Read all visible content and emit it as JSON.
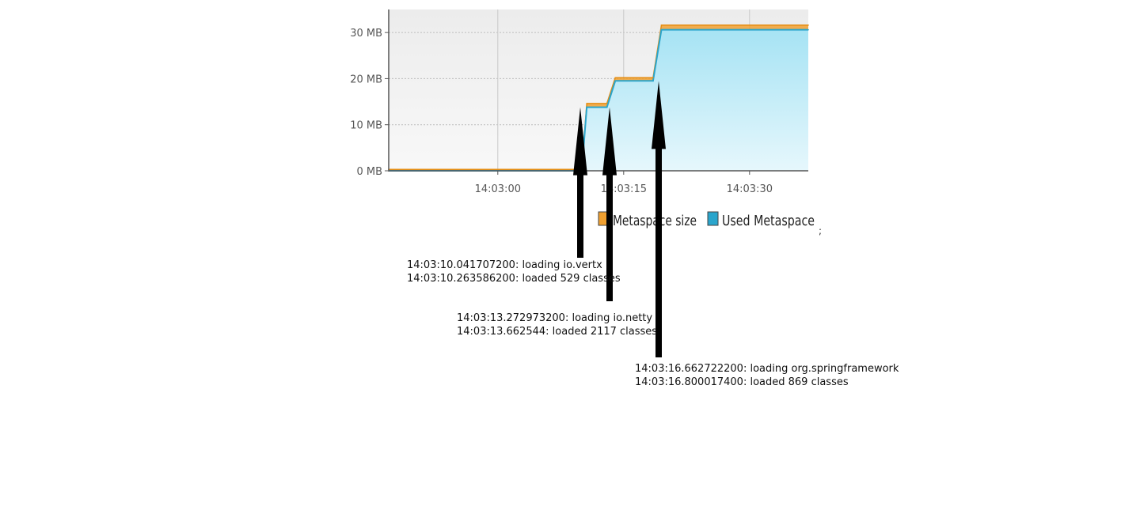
{
  "chart_data": {
    "type": "area",
    "xlabel": "",
    "ylabel": "",
    "x_ticks": [
      "14:03:00",
      "14:03:15",
      "14:03:30"
    ],
    "y_ticks": [
      "0 MB",
      "10 MB",
      "20 MB",
      "30 MB"
    ],
    "ylim": [
      0,
      35
    ],
    "xlim_seconds": [
      -13,
      37
    ],
    "grid": true,
    "legend_position": "bottom",
    "series": [
      {
        "name": "Metaspace size",
        "color": "#f0a030",
        "points": [
          [
            -13,
            0.3
          ],
          [
            10.0,
            0.3
          ],
          [
            10.6,
            14.6
          ],
          [
            13.0,
            14.6
          ],
          [
            14.0,
            20.2
          ],
          [
            18.5,
            20.2
          ],
          [
            19.5,
            31.6
          ],
          [
            37,
            31.6
          ]
        ]
      },
      {
        "name": "Used Metaspace",
        "color": "#2aa5cc",
        "points": [
          [
            -13,
            0.0
          ],
          [
            10.0,
            0.0
          ],
          [
            10.6,
            13.8
          ],
          [
            13.0,
            13.8
          ],
          [
            14.0,
            19.5
          ],
          [
            18.5,
            19.5
          ],
          [
            19.5,
            30.6
          ],
          [
            37,
            30.6
          ]
        ]
      }
    ],
    "annotations": [
      {
        "target_seconds": 10.6,
        "lines": [
          "14:03:10.041707200: loading io.vertx",
          "14:03:10.263586200: loaded 529 classes"
        ]
      },
      {
        "target_seconds": 13.9,
        "lines": [
          "14:03:13.272973200: loading io.netty",
          "14:03:13.662544: loaded 2117 classes"
        ]
      },
      {
        "target_seconds": 19.7,
        "lines": [
          "14:03:16.662722200: loading org.springframework",
          "14:03:16.800017400: loaded 869 classes"
        ]
      }
    ]
  },
  "legend_items": [
    {
      "label": "Metaspace size",
      "color": "#f0a030"
    },
    {
      "label": "Used Metaspace",
      "color": "#2aa5cc"
    }
  ]
}
